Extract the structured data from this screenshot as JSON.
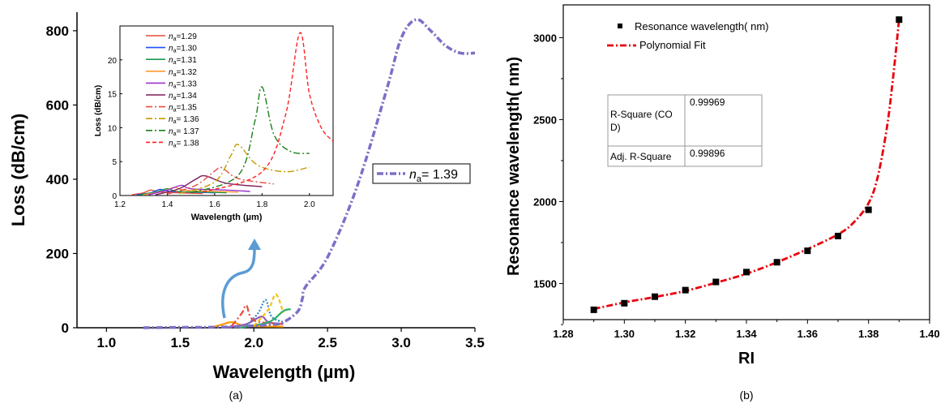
{
  "chart_data": [
    {
      "type": "line",
      "caption": "(a)",
      "xlabel": "Wavelength (µm)",
      "ylabel": "Loss (dB/cm)",
      "xlim": [
        0.8,
        3.5
      ],
      "ylim": [
        0,
        850
      ],
      "x_ticks": [
        1.0,
        1.5,
        2.0,
        2.5,
        3.0,
        3.5
      ],
      "y_ticks": [
        0,
        200,
        400,
        600,
        800
      ],
      "grid": false,
      "series": [
        {
          "name": "n_a= 1.39",
          "legend_label": "= 1.39",
          "color": "#7b6fc6",
          "dash": "dash-dot",
          "x": [
            1.25,
            1.5,
            1.8,
            2.1,
            2.2,
            2.3,
            2.33,
            2.35,
            2.5,
            2.7,
            2.9,
            3.0,
            3.1,
            3.2,
            3.3,
            3.4,
            3.5
          ],
          "y": [
            0,
            1,
            2,
            8,
            15,
            45,
            80,
            110,
            190,
            380,
            640,
            780,
            830,
            800,
            760,
            740,
            740
          ]
        },
        {
          "name": "n_a=1.29",
          "color": "#ff9900",
          "dash": "solid",
          "x": [
            1.7,
            1.78,
            1.85,
            1.95,
            2.2
          ],
          "y": [
            0,
            8,
            15,
            5,
            3
          ]
        },
        {
          "name": "n_a=1.33",
          "color": "#9b59b6",
          "dash": "solid",
          "x": [
            1.8,
            1.95,
            2.05,
            2.1,
            2.2
          ],
          "y": [
            0,
            10,
            30,
            15,
            10
          ]
        },
        {
          "name": "n_a=1.35",
          "color": "#e74c3c",
          "dash": "dash-dot",
          "x": [
            1.85,
            1.92,
            1.95,
            2.0,
            2.2
          ],
          "y": [
            5,
            40,
            60,
            20,
            10
          ]
        },
        {
          "name": "n_a=1.36",
          "color": "#2e86c1",
          "dash": "dotted",
          "x": [
            1.95,
            2.03,
            2.08,
            2.12,
            2.2
          ],
          "y": [
            5,
            40,
            75,
            30,
            15
          ]
        },
        {
          "name": "n_a=1.37",
          "color": "#27ae60",
          "dash": "solid",
          "x": [
            1.9,
            2.1,
            2.2,
            2.25
          ],
          "y": [
            0,
            15,
            45,
            50
          ]
        },
        {
          "name": "n_a=1.38",
          "color": "#f1c40f",
          "dash": "dashed",
          "x": [
            2.0,
            2.1,
            2.15,
            2.2
          ],
          "y": [
            5,
            50,
            90,
            40
          ]
        }
      ],
      "annotation_arrow": {
        "color": "#5b9bd5"
      },
      "inset": {
        "xlabel": "Wavelength (µm)",
        "ylabel": "Loss (dB/cm)",
        "xlim": [
          1.2,
          2.1
        ],
        "ylim": [
          0,
          25
        ],
        "x_ticks": [
          1.2,
          1.4,
          1.6,
          1.8,
          2.0
        ],
        "y_ticks": [
          0,
          5,
          10,
          15,
          20
        ],
        "legend_placement": "top-left",
        "series": [
          {
            "name": "n_a=1.29",
            "legend_label": "=1.29",
            "color": "#e74c3c",
            "dash": "solid",
            "x": [
              1.25,
              1.3,
              1.33,
              1.37,
              1.45,
              1.55
            ],
            "y": [
              0.1,
              0.4,
              0.8,
              0.5,
              0.4,
              0.3
            ]
          },
          {
            "name": "n_a=1.30",
            "legend_label": "=1.30",
            "color": "#1f4fff",
            "dash": "solid",
            "x": [
              1.27,
              1.33,
              1.37,
              1.41,
              1.5,
              1.6
            ],
            "y": [
              0.1,
              0.4,
              0.9,
              0.6,
              0.5,
              0.4
            ]
          },
          {
            "name": "n_a=1.31",
            "legend_label": "=1.31",
            "color": "#1a9850",
            "dash": "solid",
            "x": [
              1.28,
              1.35,
              1.4,
              1.44,
              1.55,
              1.65
            ],
            "y": [
              0.1,
              0.5,
              1.0,
              0.6,
              0.5,
              0.4
            ]
          },
          {
            "name": "n_a=1.32",
            "legend_label": "=1.32",
            "color": "#ff9933",
            "dash": "solid",
            "x": [
              1.3,
              1.38,
              1.43,
              1.47,
              1.6,
              1.7
            ],
            "y": [
              0.1,
              0.6,
              1.2,
              0.8,
              0.6,
              0.5
            ]
          },
          {
            "name": "n_a=1.33",
            "legend_label": "=1.33",
            "color": "#9932cc",
            "dash": "solid",
            "x": [
              1.32,
              1.4,
              1.46,
              1.5,
              1.65,
              1.75
            ],
            "y": [
              0.1,
              0.8,
              1.5,
              1.0,
              0.8,
              0.6
            ]
          },
          {
            "name": "n_a=1.34",
            "legend_label": "=1.34",
            "color": "#7b1f5a",
            "dash": "solid",
            "x": [
              1.35,
              1.45,
              1.52,
              1.56,
              1.65,
              1.8
            ],
            "y": [
              0.1,
              1.0,
              2.4,
              2.9,
              1.8,
              1.3
            ]
          },
          {
            "name": "n_a=1.35",
            "legend_label": "=1.35",
            "color": "#e74c3c",
            "dash": "dash-dot",
            "x": [
              1.4,
              1.52,
              1.6,
              1.63,
              1.7,
              1.85
            ],
            "y": [
              0.2,
              1.5,
              3.6,
              4.1,
              2.5,
              1.7
            ]
          },
          {
            "name": "n_a=1.36",
            "legend_label": "= 1.36",
            "color": "#c49a00",
            "dash": "dash-dot",
            "x": [
              1.45,
              1.6,
              1.67,
              1.7,
              1.78,
              1.9,
              2.0
            ],
            "y": [
              0.3,
              2.0,
              6.0,
              7.5,
              4.5,
              3.5,
              4.2
            ]
          },
          {
            "name": "n_a=1.37",
            "legend_label": "= 1.37",
            "color": "#1a7f1a",
            "dash": "dash-dot",
            "x": [
              1.5,
              1.7,
              1.77,
              1.8,
              1.85,
              1.92,
              2.0
            ],
            "y": [
              0.4,
              3.0,
              11.0,
              16.0,
              9.0,
              6.5,
              6.2
            ]
          },
          {
            "name": "n_a=1.38",
            "legend_label": "= 1.38",
            "color": "#ff2020",
            "dash": "dashed",
            "x": [
              1.55,
              1.8,
              1.9,
              1.96,
              2.0,
              2.05,
              2.1
            ],
            "y": [
              0.5,
              3.5,
              12.0,
              24.0,
              15.0,
              10.0,
              8.0
            ]
          }
        ]
      }
    },
    {
      "type": "scatter",
      "caption": "(b)",
      "xlabel": "RI",
      "ylabel": "Resonance wavelength( nm)",
      "xlim": [
        1.28,
        1.4
      ],
      "ylim": [
        1280,
        3200
      ],
      "x_ticks": [
        "1.28",
        "1.30",
        "1.32",
        "1.34",
        "1.36",
        "1.38",
        "1.40"
      ],
      "y_ticks": [
        1500,
        2000,
        2500,
        3000
      ],
      "grid": false,
      "legend_placement": "top-left",
      "legend": [
        "Resonance wavelength( nm)",
        "Polynomial Fit"
      ],
      "series": [
        {
          "name": "Resonance wavelength( nm)",
          "color": "#000000",
          "x": [
            1.29,
            1.3,
            1.31,
            1.32,
            1.33,
            1.34,
            1.35,
            1.36,
            1.37,
            1.38,
            1.39
          ],
          "y": [
            1340,
            1380,
            1420,
            1460,
            1510,
            1570,
            1630,
            1700,
            1790,
            1950,
            3110
          ]
        },
        {
          "name": "Polynomial Fit",
          "color": "#e8000b",
          "dash": "dash-dot",
          "x": [
            1.29,
            1.3,
            1.31,
            1.32,
            1.33,
            1.34,
            1.35,
            1.36,
            1.37,
            1.375,
            1.38,
            1.383,
            1.386,
            1.388,
            1.39
          ],
          "y": [
            1345,
            1385,
            1418,
            1455,
            1505,
            1560,
            1630,
            1710,
            1800,
            1870,
            1990,
            2150,
            2450,
            2750,
            3110
          ]
        }
      ],
      "stats_table": [
        {
          "label": "R-Square (CO\nD)",
          "value": "0.99969"
        },
        {
          "label": "Adj. R-Square",
          "value": "0.99896"
        }
      ]
    }
  ]
}
